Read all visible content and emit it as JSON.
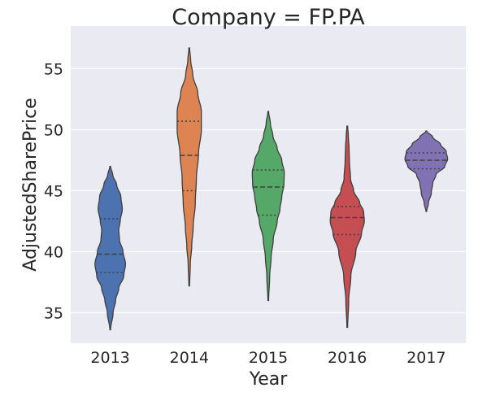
{
  "chart_data": {
    "type": "violin",
    "title": "Company = FP.PA",
    "xlabel": "Year",
    "ylabel": "AdjustedSharePrice",
    "ylim": [
      32.5,
      58.5
    ],
    "yticks": [
      35,
      40,
      45,
      50,
      55
    ],
    "grid": true,
    "legend": "none",
    "inner": "quartile",
    "categories": [
      "2013",
      "2014",
      "2015",
      "2016",
      "2017"
    ],
    "colors": [
      "#4c72b0",
      "#dd8452",
      "#55a868",
      "#c44e52",
      "#8172b3"
    ],
    "violins": [
      {
        "category": "2013",
        "min": 33.6,
        "max": 47.0,
        "quartiles": [
          38.3,
          39.8,
          42.7
        ],
        "profile": [
          [
            33.6,
            0.01
          ],
          [
            35,
            0.08
          ],
          [
            36,
            0.15
          ],
          [
            37,
            0.24
          ],
          [
            38,
            0.38
          ],
          [
            39,
            0.43
          ],
          [
            40,
            0.36
          ],
          [
            41,
            0.26
          ],
          [
            41.8,
            0.24
          ],
          [
            42.5,
            0.28
          ],
          [
            43.5,
            0.34
          ],
          [
            44.5,
            0.3
          ],
          [
            45.5,
            0.18
          ],
          [
            46.3,
            0.07
          ],
          [
            47.0,
            0.01
          ]
        ]
      },
      {
        "category": "2014",
        "min": 37.2,
        "max": 56.7,
        "quartiles": [
          45.0,
          47.9,
          50.7
        ],
        "profile": [
          [
            37.2,
            0.01
          ],
          [
            39,
            0.03
          ],
          [
            40.5,
            0.07
          ],
          [
            42,
            0.11
          ],
          [
            44,
            0.17
          ],
          [
            46,
            0.2
          ],
          [
            48,
            0.26
          ],
          [
            50,
            0.34
          ],
          [
            51.5,
            0.34
          ],
          [
            53,
            0.24
          ],
          [
            54.5,
            0.1
          ],
          [
            55.7,
            0.04
          ],
          [
            56.7,
            0.01
          ]
        ]
      },
      {
        "category": "2015",
        "min": 36.0,
        "max": 51.5,
        "quartiles": [
          43.0,
          45.3,
          46.7
        ],
        "profile": [
          [
            36.0,
            0.01
          ],
          [
            38,
            0.04
          ],
          [
            39.5,
            0.08
          ],
          [
            41,
            0.14
          ],
          [
            42.5,
            0.25
          ],
          [
            43.5,
            0.33
          ],
          [
            44.5,
            0.38
          ],
          [
            45.5,
            0.44
          ],
          [
            46.5,
            0.45
          ],
          [
            47.5,
            0.38
          ],
          [
            48.5,
            0.25
          ],
          [
            49.5,
            0.13
          ],
          [
            50.5,
            0.06
          ],
          [
            51.5,
            0.01
          ]
        ]
      },
      {
        "category": "2016",
        "min": 33.8,
        "max": 50.3,
        "quartiles": [
          41.4,
          42.8,
          43.7
        ],
        "profile": [
          [
            33.8,
            0.01
          ],
          [
            36,
            0.04
          ],
          [
            38,
            0.1
          ],
          [
            40,
            0.24
          ],
          [
            41.5,
            0.4
          ],
          [
            42.5,
            0.48
          ],
          [
            43.3,
            0.46
          ],
          [
            44,
            0.35
          ],
          [
            45,
            0.18
          ],
          [
            46,
            0.09
          ],
          [
            47.5,
            0.06
          ],
          [
            48.5,
            0.05
          ],
          [
            49.5,
            0.03
          ],
          [
            50.3,
            0.01
          ]
        ]
      },
      {
        "category": "2017",
        "min": 43.3,
        "max": 49.9,
        "quartiles": [
          46.8,
          47.5,
          48.1
        ],
        "profile": [
          [
            43.3,
            0.01
          ],
          [
            44,
            0.06
          ],
          [
            44.8,
            0.14
          ],
          [
            45.6,
            0.18
          ],
          [
            46.3,
            0.27
          ],
          [
            47,
            0.52
          ],
          [
            47.6,
            0.6
          ],
          [
            48.2,
            0.56
          ],
          [
            48.8,
            0.4
          ],
          [
            49.4,
            0.18
          ],
          [
            49.9,
            0.01
          ]
        ]
      }
    ]
  }
}
